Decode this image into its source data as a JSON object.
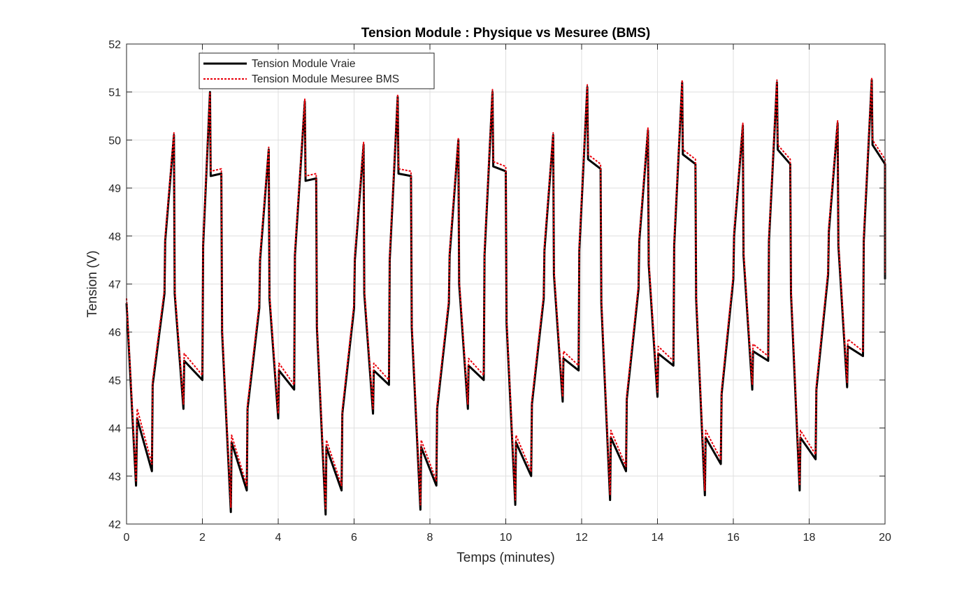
{
  "chart_data": {
    "type": "line",
    "title": "Tension Module : Physique vs Mesuree (BMS)",
    "xlabel": "Temps (minutes)",
    "ylabel": "Tension (V)",
    "xlim": [
      0,
      20
    ],
    "ylim": [
      42,
      52
    ],
    "xticks": [
      "0",
      "2",
      "4",
      "6",
      "8",
      "10",
      "12",
      "14",
      "16",
      "18",
      "20"
    ],
    "yticks": [
      "42",
      "43",
      "44",
      "45",
      "46",
      "47",
      "48",
      "49",
      "50",
      "51",
      "52"
    ],
    "grid": true,
    "legend_position": "top-left",
    "series": [
      {
        "name": "Tension Module Vraie",
        "color": "#000000",
        "style": "solid",
        "points": [
          [
            0.0,
            46.6
          ],
          [
            0.25,
            42.8
          ],
          [
            0.28,
            44.2
          ],
          [
            0.67,
            43.1
          ],
          [
            0.69,
            44.9
          ],
          [
            1.0,
            46.8
          ],
          [
            1.02,
            47.9
          ],
          [
            1.25,
            50.1
          ],
          [
            1.27,
            46.8
          ],
          [
            1.5,
            44.4
          ],
          [
            1.52,
            45.4
          ],
          [
            2.0,
            45.0
          ],
          [
            2.02,
            47.8
          ],
          [
            2.2,
            51.0
          ],
          [
            2.22,
            49.25
          ],
          [
            2.5,
            49.3
          ],
          [
            2.52,
            46.0
          ],
          [
            2.75,
            42.25
          ],
          [
            2.77,
            43.7
          ],
          [
            3.17,
            42.7
          ],
          [
            3.19,
            44.4
          ],
          [
            3.5,
            46.5
          ],
          [
            3.52,
            47.5
          ],
          [
            3.75,
            49.8
          ],
          [
            3.77,
            46.7
          ],
          [
            4.0,
            44.2
          ],
          [
            4.02,
            45.2
          ],
          [
            4.42,
            44.8
          ],
          [
            4.44,
            47.6
          ],
          [
            4.7,
            50.8
          ],
          [
            4.72,
            49.15
          ],
          [
            5.0,
            49.2
          ],
          [
            5.02,
            46.1
          ],
          [
            5.25,
            42.2
          ],
          [
            5.27,
            43.6
          ],
          [
            5.67,
            42.7
          ],
          [
            5.69,
            44.3
          ],
          [
            6.0,
            46.5
          ],
          [
            6.02,
            47.5
          ],
          [
            6.25,
            49.9
          ],
          [
            6.27,
            46.8
          ],
          [
            6.5,
            44.3
          ],
          [
            6.52,
            45.2
          ],
          [
            6.92,
            44.9
          ],
          [
            6.94,
            47.5
          ],
          [
            7.15,
            50.9
          ],
          [
            7.17,
            49.3
          ],
          [
            7.5,
            49.25
          ],
          [
            7.52,
            46.1
          ],
          [
            7.75,
            42.3
          ],
          [
            7.77,
            43.6
          ],
          [
            8.17,
            42.8
          ],
          [
            8.19,
            44.4
          ],
          [
            8.5,
            46.6
          ],
          [
            8.52,
            47.6
          ],
          [
            8.75,
            50.0
          ],
          [
            8.77,
            47.0
          ],
          [
            9.0,
            44.4
          ],
          [
            9.02,
            45.3
          ],
          [
            9.42,
            45.0
          ],
          [
            9.44,
            47.6
          ],
          [
            9.65,
            51.0
          ],
          [
            9.67,
            49.45
          ],
          [
            10.0,
            49.35
          ],
          [
            10.02,
            46.2
          ],
          [
            10.25,
            42.4
          ],
          [
            10.27,
            43.7
          ],
          [
            10.67,
            43.0
          ],
          [
            10.69,
            44.5
          ],
          [
            11.0,
            46.7
          ],
          [
            11.02,
            47.7
          ],
          [
            11.25,
            50.1
          ],
          [
            11.27,
            47.2
          ],
          [
            11.5,
            44.55
          ],
          [
            11.52,
            45.45
          ],
          [
            11.92,
            45.2
          ],
          [
            11.94,
            47.7
          ],
          [
            12.15,
            51.1
          ],
          [
            12.17,
            49.6
          ],
          [
            12.5,
            49.4
          ],
          [
            12.52,
            46.6
          ],
          [
            12.75,
            42.5
          ],
          [
            12.77,
            43.8
          ],
          [
            13.17,
            43.1
          ],
          [
            13.19,
            44.6
          ],
          [
            13.5,
            46.9
          ],
          [
            13.52,
            47.9
          ],
          [
            13.75,
            50.2
          ],
          [
            13.77,
            47.4
          ],
          [
            14.0,
            44.65
          ],
          [
            14.02,
            45.55
          ],
          [
            14.42,
            45.3
          ],
          [
            14.44,
            47.8
          ],
          [
            14.65,
            51.2
          ],
          [
            14.67,
            49.7
          ],
          [
            15.0,
            49.5
          ],
          [
            15.02,
            46.7
          ],
          [
            15.25,
            42.6
          ],
          [
            15.27,
            43.8
          ],
          [
            15.67,
            43.25
          ],
          [
            15.69,
            44.7
          ],
          [
            16.0,
            47.1
          ],
          [
            16.02,
            48.0
          ],
          [
            16.25,
            50.3
          ],
          [
            16.27,
            47.6
          ],
          [
            16.5,
            44.8
          ],
          [
            16.52,
            45.6
          ],
          [
            16.92,
            45.4
          ],
          [
            16.94,
            47.9
          ],
          [
            17.15,
            51.2
          ],
          [
            17.17,
            49.8
          ],
          [
            17.5,
            49.5
          ],
          [
            17.52,
            46.8
          ],
          [
            17.75,
            42.7
          ],
          [
            17.77,
            43.8
          ],
          [
            18.17,
            43.35
          ],
          [
            18.19,
            44.8
          ],
          [
            18.5,
            47.2
          ],
          [
            18.52,
            48.1
          ],
          [
            18.75,
            50.35
          ],
          [
            18.77,
            47.8
          ],
          [
            19.0,
            44.85
          ],
          [
            19.02,
            45.7
          ],
          [
            19.42,
            45.5
          ],
          [
            19.44,
            47.9
          ],
          [
            19.65,
            51.25
          ],
          [
            19.67,
            49.9
          ],
          [
            20.0,
            49.5
          ],
          [
            20.0,
            47.1
          ]
        ]
      },
      {
        "name": "Tension Module Mesuree BMS",
        "color": "#e8000b",
        "style": "dotted",
        "points": [
          [
            0.0,
            46.7
          ],
          [
            0.25,
            42.9
          ],
          [
            0.28,
            44.4
          ],
          [
            0.67,
            43.25
          ],
          [
            0.69,
            45.0
          ],
          [
            1.0,
            46.9
          ],
          [
            1.02,
            48.0
          ],
          [
            1.25,
            50.15
          ],
          [
            1.27,
            46.9
          ],
          [
            1.5,
            44.5
          ],
          [
            1.52,
            45.55
          ],
          [
            2.0,
            45.1
          ],
          [
            2.02,
            47.9
          ],
          [
            2.2,
            51.0
          ],
          [
            2.22,
            49.35
          ],
          [
            2.5,
            49.4
          ],
          [
            2.52,
            46.1
          ],
          [
            2.75,
            42.35
          ],
          [
            2.77,
            43.85
          ],
          [
            3.17,
            42.8
          ],
          [
            3.19,
            44.5
          ],
          [
            3.5,
            46.6
          ],
          [
            3.52,
            47.6
          ],
          [
            3.75,
            49.85
          ],
          [
            3.77,
            46.8
          ],
          [
            4.0,
            44.3
          ],
          [
            4.02,
            45.35
          ],
          [
            4.42,
            44.9
          ],
          [
            4.44,
            47.7
          ],
          [
            4.7,
            50.85
          ],
          [
            4.72,
            49.25
          ],
          [
            5.0,
            49.3
          ],
          [
            5.02,
            46.2
          ],
          [
            5.25,
            42.3
          ],
          [
            5.27,
            43.75
          ],
          [
            5.67,
            42.8
          ],
          [
            5.69,
            44.4
          ],
          [
            6.0,
            46.6
          ],
          [
            6.02,
            47.6
          ],
          [
            6.25,
            49.95
          ],
          [
            6.27,
            46.9
          ],
          [
            6.5,
            44.4
          ],
          [
            6.52,
            45.35
          ],
          [
            6.92,
            45.0
          ],
          [
            6.94,
            47.6
          ],
          [
            7.15,
            50.95
          ],
          [
            7.17,
            49.4
          ],
          [
            7.5,
            49.35
          ],
          [
            7.52,
            46.2
          ],
          [
            7.75,
            42.4
          ],
          [
            7.77,
            43.75
          ],
          [
            8.17,
            42.9
          ],
          [
            8.19,
            44.5
          ],
          [
            8.5,
            46.7
          ],
          [
            8.52,
            47.7
          ],
          [
            8.75,
            50.05
          ],
          [
            8.77,
            47.1
          ],
          [
            9.0,
            44.5
          ],
          [
            9.02,
            45.45
          ],
          [
            9.42,
            45.1
          ],
          [
            9.44,
            47.7
          ],
          [
            9.65,
            51.05
          ],
          [
            9.67,
            49.55
          ],
          [
            10.0,
            49.45
          ],
          [
            10.02,
            46.3
          ],
          [
            10.25,
            42.5
          ],
          [
            10.27,
            43.85
          ],
          [
            10.67,
            43.1
          ],
          [
            10.69,
            44.6
          ],
          [
            11.0,
            46.8
          ],
          [
            11.02,
            47.8
          ],
          [
            11.25,
            50.15
          ],
          [
            11.27,
            47.3
          ],
          [
            11.5,
            44.65
          ],
          [
            11.52,
            45.6
          ],
          [
            11.92,
            45.3
          ],
          [
            11.94,
            47.8
          ],
          [
            12.15,
            51.15
          ],
          [
            12.17,
            49.7
          ],
          [
            12.5,
            49.5
          ],
          [
            12.52,
            46.7
          ],
          [
            12.75,
            42.6
          ],
          [
            12.77,
            43.95
          ],
          [
            13.17,
            43.2
          ],
          [
            13.19,
            44.7
          ],
          [
            13.5,
            47.0
          ],
          [
            13.52,
            48.0
          ],
          [
            13.75,
            50.25
          ],
          [
            13.77,
            47.5
          ],
          [
            14.0,
            44.75
          ],
          [
            14.02,
            45.7
          ],
          [
            14.42,
            45.4
          ],
          [
            14.44,
            47.9
          ],
          [
            14.65,
            51.25
          ],
          [
            14.67,
            49.8
          ],
          [
            15.0,
            49.6
          ],
          [
            15.02,
            46.8
          ],
          [
            15.25,
            42.7
          ],
          [
            15.27,
            43.95
          ],
          [
            15.67,
            43.35
          ],
          [
            15.69,
            44.8
          ],
          [
            16.0,
            47.2
          ],
          [
            16.02,
            48.1
          ],
          [
            16.25,
            50.35
          ],
          [
            16.27,
            47.7
          ],
          [
            16.5,
            44.9
          ],
          [
            16.52,
            45.75
          ],
          [
            16.92,
            45.5
          ],
          [
            16.94,
            48.0
          ],
          [
            17.15,
            51.25
          ],
          [
            17.17,
            49.9
          ],
          [
            17.5,
            49.6
          ],
          [
            17.52,
            46.9
          ],
          [
            17.75,
            42.8
          ],
          [
            17.77,
            43.95
          ],
          [
            18.17,
            43.45
          ],
          [
            18.19,
            44.9
          ],
          [
            18.5,
            47.3
          ],
          [
            18.52,
            48.2
          ],
          [
            18.75,
            50.4
          ],
          [
            18.77,
            47.9
          ],
          [
            19.0,
            44.95
          ],
          [
            19.02,
            45.85
          ],
          [
            19.42,
            45.6
          ],
          [
            19.44,
            48.0
          ],
          [
            19.65,
            51.3
          ],
          [
            19.67,
            50.0
          ],
          [
            20.0,
            49.6
          ],
          [
            20.0,
            47.2
          ]
        ]
      }
    ]
  }
}
